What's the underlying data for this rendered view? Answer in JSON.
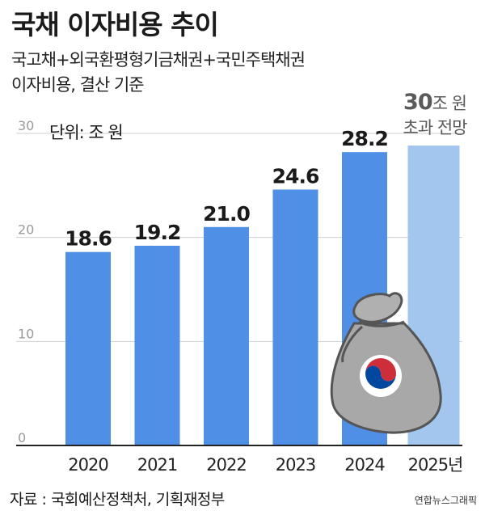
{
  "title": "국채 이자비용 추이",
  "subtitle_lines": [
    "국고채+외국환평형기금채권+국민주택채권",
    "이자비용, 결산 기준"
  ],
  "unit": "단위: 조 원",
  "forecast_note": {
    "value": "30",
    "unit": "조 원",
    "line2": "초과 전망"
  },
  "source": "자료 : 국회예산정책처, 기획재정부",
  "credit": "연합뉴스그래픽",
  "colors": {
    "bar": "#4f8fe6",
    "forecast_bar": "#a3c6ee",
    "grid": "#cfcfcf",
    "axis": "#222222",
    "tick_label": "#9a9a9a"
  },
  "chart_data": {
    "type": "bar",
    "categories": [
      "2020",
      "2021",
      "2022",
      "2023",
      "2024",
      "2025년"
    ],
    "values": [
      18.6,
      19.2,
      21.0,
      24.6,
      28.2,
      null
    ],
    "data_labels": [
      "18.6",
      "19.2",
      "21.0",
      "24.6",
      "28.2",
      ""
    ],
    "forecast_category": "2025년",
    "forecast_min": 30,
    "yticks": [
      0,
      10,
      20,
      30
    ],
    "ylim": [
      0,
      30
    ],
    "grid": true,
    "illustration": "money-bag-icon"
  }
}
